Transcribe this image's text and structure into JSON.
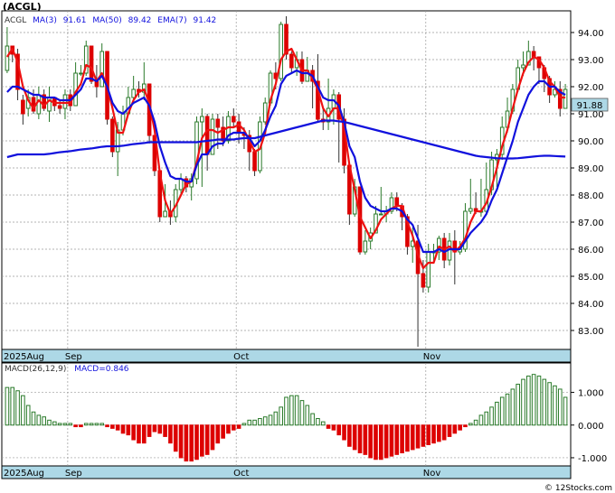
{
  "ticker": "(ACGL)",
  "watermark": "© 12Stocks.com",
  "colors": {
    "up": "#2a7a2a",
    "down": "#dd0000",
    "ma3": "#ee1111",
    "ma50": "#1111dd",
    "ema7": "#1111dd",
    "grid": "#9a9a9a",
    "axisband": "#add8e6",
    "badge": "#add8e6"
  },
  "legend": {
    "symbol": "ACGL",
    "ma3_label": "MA(3)",
    "ma3_value": "91.61",
    "ma50_label": "MA(50)",
    "ma50_value": "89.42",
    "ema7_label": "EMA(7)",
    "ema7_value": "91.42"
  },
  "last_price_badge": "91.88",
  "macd_legend": {
    "label": "MACD(26,12,9)",
    "value_label": "MACD=0.846"
  },
  "chart_data": [
    {
      "type": "candlestick",
      "title": "(ACGL)",
      "ylim": [
        82.3,
        94.8
      ],
      "yticks": [
        "83.00",
        "84.00",
        "85.00",
        "86.00",
        "87.00",
        "88.00",
        "89.00",
        "90.00",
        "91.00",
        "92.00",
        "93.00",
        "94.00"
      ],
      "x_axis_labels": [
        "2025Aug",
        "Sep",
        "Oct",
        "Nov"
      ],
      "x_axis_label_at_bar": [
        0,
        12,
        44,
        80
      ],
      "grid": true,
      "candles": [
        [
          92.6,
          93.5,
          94.2,
          92.5
        ],
        [
          93.5,
          93.2,
          93.5,
          92.9
        ],
        [
          93.2,
          91.9,
          93.4,
          91.5
        ],
        [
          91.5,
          91.0,
          91.7,
          90.6
        ],
        [
          91.2,
          91.6,
          91.9,
          90.9
        ],
        [
          91.6,
          91.1,
          91.9,
          91.0
        ],
        [
          91.0,
          91.7,
          92.0,
          90.8
        ],
        [
          91.7,
          91.2,
          91.9,
          91.1
        ],
        [
          91.1,
          91.6,
          92.0,
          90.7
        ],
        [
          91.6,
          91.3,
          91.6,
          91.1
        ],
        [
          91.3,
          91.2,
          91.5,
          91.0
        ],
        [
          91.2,
          91.7,
          91.9,
          90.8
        ],
        [
          91.7,
          91.3,
          91.9,
          91.1
        ],
        [
          91.3,
          92.5,
          92.9,
          91.3
        ],
        [
          92.5,
          92.5,
          92.8,
          92.4
        ],
        [
          92.5,
          93.5,
          93.7,
          92.4
        ],
        [
          93.5,
          92.2,
          93.5,
          92.1
        ],
        [
          92.2,
          92.0,
          92.8,
          91.6
        ],
        [
          92.0,
          93.3,
          93.6,
          92.0
        ],
        [
          93.3,
          90.8,
          93.3,
          90.6
        ],
        [
          90.8,
          89.6,
          90.9,
          89.4
        ],
        [
          89.6,
          90.4,
          90.7,
          88.7
        ],
        [
          90.4,
          91.0,
          91.3,
          90.2
        ],
        [
          91.0,
          91.6,
          92.0,
          91.0
        ],
        [
          91.6,
          91.9,
          92.4,
          91.4
        ],
        [
          91.9,
          91.8,
          92.2,
          91.6
        ],
        [
          91.8,
          92.1,
          92.9,
          91.5
        ],
        [
          92.1,
          90.2,
          92.1,
          89.9
        ],
        [
          90.2,
          88.9,
          90.2,
          88.7
        ],
        [
          88.9,
          87.2,
          88.9,
          87.0
        ],
        [
          87.2,
          87.4,
          88.4,
          87.2
        ],
        [
          87.4,
          87.2,
          87.8,
          86.9
        ],
        [
          87.2,
          88.2,
          88.4,
          87.0
        ],
        [
          88.2,
          88.6,
          88.8,
          88.0
        ],
        [
          88.6,
          88.3,
          88.7,
          88.1
        ],
        [
          88.3,
          88.6,
          88.8,
          87.8
        ],
        [
          88.6,
          90.7,
          90.9,
          88.4
        ],
        [
          90.7,
          90.9,
          91.2,
          88.3
        ],
        [
          90.9,
          89.5,
          91.0,
          88.9
        ],
        [
          89.5,
          90.8,
          91.0,
          89.5
        ],
        [
          90.8,
          90.5,
          91.0,
          89.7
        ],
        [
          90.5,
          90.0,
          90.9,
          89.8
        ],
        [
          90.0,
          90.9,
          91.1,
          89.9
        ],
        [
          90.9,
          90.7,
          91.2,
          90.5
        ],
        [
          90.7,
          90.3,
          91.0,
          89.9
        ],
        [
          90.3,
          90.2,
          90.5,
          89.7
        ],
        [
          90.2,
          89.6,
          90.4,
          88.9
        ],
        [
          89.6,
          88.9,
          89.7,
          88.7
        ],
        [
          88.9,
          90.7,
          90.9,
          88.8
        ],
        [
          90.7,
          91.4,
          91.6,
          90.6
        ],
        [
          91.4,
          92.5,
          92.6,
          91.3
        ],
        [
          92.5,
          92.3,
          92.9,
          91.9
        ],
        [
          92.3,
          94.3,
          94.4,
          92.2
        ],
        [
          94.3,
          93.2,
          94.6,
          93.0
        ],
        [
          93.2,
          92.7,
          93.3,
          92.5
        ],
        [
          92.7,
          93.0,
          93.3,
          92.4
        ],
        [
          93.0,
          92.2,
          93.3,
          92.1
        ],
        [
          92.2,
          92.6,
          93.1,
          92.2
        ],
        [
          92.6,
          92.2,
          92.8,
          91.2
        ],
        [
          92.2,
          90.8,
          93.2,
          90.7
        ],
        [
          90.8,
          90.7,
          91.2,
          90.4
        ],
        [
          90.7,
          91.2,
          92.3,
          90.4
        ],
        [
          91.2,
          91.7,
          91.9,
          90.6
        ],
        [
          91.7,
          90.8,
          91.8,
          89.2
        ],
        [
          90.8,
          89.1,
          91.2,
          88.8
        ],
        [
          89.1,
          87.3,
          89.1,
          86.9
        ],
        [
          87.3,
          88.3,
          88.6,
          87.2
        ],
        [
          88.3,
          85.9,
          88.3,
          85.8
        ],
        [
          85.9,
          86.3,
          86.7,
          85.8
        ],
        [
          86.3,
          86.6,
          86.8,
          86.0
        ],
        [
          86.6,
          87.3,
          87.6,
          86.6
        ],
        [
          87.3,
          87.3,
          88.3,
          87.3
        ],
        [
          87.3,
          87.4,
          87.6,
          87.0
        ],
        [
          87.4,
          87.9,
          88.1,
          87.3
        ],
        [
          87.9,
          87.6,
          88.1,
          87.4
        ],
        [
          87.6,
          87.2,
          87.7,
          86.7
        ],
        [
          87.2,
          86.1,
          87.3,
          85.8
        ],
        [
          86.1,
          86.3,
          86.8,
          85.5
        ],
        [
          86.3,
          85.1,
          86.9,
          82.4
        ],
        [
          85.1,
          84.6,
          85.6,
          84.4
        ],
        [
          84.6,
          85.9,
          86.2,
          84.4
        ],
        [
          85.9,
          85.9,
          86.2,
          85.5
        ],
        [
          85.9,
          86.4,
          86.5,
          85.6
        ],
        [
          86.4,
          85.6,
          86.6,
          85.3
        ],
        [
          85.6,
          86.3,
          86.6,
          85.4
        ],
        [
          86.3,
          85.9,
          86.7,
          84.7
        ],
        [
          85.9,
          86.0,
          86.3,
          85.8
        ],
        [
          86.0,
          87.4,
          87.7,
          85.9
        ],
        [
          87.4,
          87.5,
          88.6,
          87.3
        ],
        [
          87.5,
          87.4,
          88.1,
          87.3
        ],
        [
          87.4,
          87.4,
          88.6,
          87.2
        ],
        [
          87.4,
          88.2,
          89.2,
          87.3
        ],
        [
          88.2,
          89.3,
          89.6,
          88.0
        ],
        [
          89.3,
          89.5,
          89.7,
          88.3
        ],
        [
          89.5,
          90.5,
          90.9,
          89.3
        ],
        [
          90.5,
          91.1,
          91.6,
          90.3
        ],
        [
          91.1,
          91.9,
          92.1,
          91.0
        ],
        [
          91.9,
          92.7,
          93.0,
          91.8
        ],
        [
          92.7,
          92.8,
          93.3,
          92.4
        ],
        [
          92.8,
          93.3,
          93.7,
          93.1
        ],
        [
          93.3,
          93.1,
          93.5,
          92.6
        ],
        [
          93.1,
          92.7,
          93.1,
          92.1
        ],
        [
          92.7,
          92.3,
          92.8,
          91.8
        ],
        [
          92.3,
          91.7,
          92.4,
          91.4
        ],
        [
          91.7,
          91.9,
          92.2,
          91.6
        ],
        [
          91.9,
          91.2,
          92.2,
          90.9
        ],
        [
          91.2,
          91.9,
          92.1,
          91.3
        ]
      ],
      "series": [
        {
          "name": "MA(3)",
          "key": "ma3",
          "values": [
            93.1,
            93.4,
            92.9,
            92.0,
            91.5,
            91.2,
            91.5,
            91.3,
            91.5,
            91.4,
            91.4,
            91.4,
            91.4,
            91.8,
            92.1,
            92.8,
            92.7,
            92.2,
            92.5,
            92.0,
            91.2,
            90.3,
            90.3,
            91.0,
            91.5,
            91.8,
            91.9,
            91.4,
            90.4,
            88.8,
            87.8,
            87.3,
            87.6,
            88.0,
            88.4,
            88.5,
            89.2,
            90.1,
            90.4,
            90.4,
            90.3,
            90.4,
            90.5,
            90.5,
            90.6,
            90.4,
            90.0,
            89.6,
            89.7,
            90.3,
            91.5,
            92.1,
            93.0,
            93.3,
            93.4,
            93.0,
            92.6,
            92.6,
            92.3,
            91.9,
            91.2,
            90.9,
            91.2,
            91.2,
            90.5,
            89.1,
            88.2,
            87.2,
            86.8,
            86.4,
            86.7,
            87.1,
            87.3,
            87.5,
            87.6,
            87.6,
            87.0,
            86.5,
            85.8,
            85.3,
            85.5,
            85.5,
            86.1,
            86.0,
            86.1,
            85.9,
            86.1,
            86.4,
            87.0,
            87.4,
            87.4,
            87.7,
            88.3,
            89.0,
            89.8,
            90.4,
            91.2,
            91.9,
            92.5,
            92.9,
            93.1,
            93.0,
            92.7,
            92.2,
            92.0,
            91.6,
            91.6
          ]
        },
        {
          "name": "MA(50)",
          "key": "ma50",
          "values": [
            89.4,
            89.45,
            89.5,
            89.5,
            89.5,
            89.5,
            89.5,
            89.5,
            89.52,
            89.55,
            89.58,
            89.6,
            89.62,
            89.65,
            89.68,
            89.7,
            89.72,
            89.75,
            89.78,
            89.8,
            89.8,
            89.8,
            89.82,
            89.85,
            89.88,
            89.9,
            89.92,
            89.95,
            89.95,
            89.95,
            89.95,
            89.95,
            89.95,
            89.95,
            89.95,
            89.95,
            89.95,
            89.98,
            90.0,
            90.02,
            90.05,
            90.05,
            90.05,
            90.05,
            90.08,
            90.1,
            90.1,
            90.1,
            90.15,
            90.2,
            90.25,
            90.3,
            90.35,
            90.4,
            90.45,
            90.5,
            90.55,
            90.6,
            90.65,
            90.7,
            90.75,
            90.75,
            90.75,
            90.72,
            90.7,
            90.65,
            90.6,
            90.55,
            90.5,
            90.45,
            90.4,
            90.35,
            90.3,
            90.25,
            90.2,
            90.15,
            90.1,
            90.05,
            90.0,
            89.95,
            89.9,
            89.85,
            89.8,
            89.75,
            89.7,
            89.65,
            89.6,
            89.55,
            89.5,
            89.45,
            89.42,
            89.4,
            89.38,
            89.36,
            89.35,
            89.35,
            89.35,
            89.36,
            89.38,
            89.4,
            89.42,
            89.44,
            89.45,
            89.45,
            89.44,
            89.43,
            89.42
          ]
        },
        {
          "name": "EMA(7)",
          "key": "ema7",
          "values": [
            91.8,
            92.0,
            92.0,
            91.9,
            91.8,
            91.7,
            91.7,
            91.6,
            91.6,
            91.6,
            91.5,
            91.5,
            91.5,
            91.7,
            91.9,
            92.3,
            92.3,
            92.2,
            92.4,
            92.0,
            91.4,
            91.1,
            91.0,
            91.2,
            91.4,
            91.5,
            91.6,
            91.3,
            90.7,
            89.8,
            89.2,
            88.7,
            88.6,
            88.6,
            88.5,
            88.5,
            89.1,
            89.5,
            89.5,
            89.8,
            89.9,
            89.9,
            90.2,
            90.3,
            90.3,
            90.3,
            90.1,
            89.8,
            90.0,
            90.4,
            90.9,
            91.3,
            92.1,
            92.4,
            92.5,
            92.6,
            92.5,
            92.5,
            92.4,
            92.0,
            91.6,
            91.5,
            91.5,
            91.3,
            90.7,
            89.8,
            89.4,
            88.5,
            87.9,
            87.6,
            87.5,
            87.4,
            87.4,
            87.5,
            87.5,
            87.4,
            87.1,
            86.9,
            86.4,
            85.9,
            85.9,
            85.9,
            86.0,
            85.9,
            86.0,
            86.0,
            86.0,
            86.3,
            86.6,
            86.8,
            87.0,
            87.3,
            87.8,
            88.2,
            88.8,
            89.4,
            90.0,
            90.7,
            91.2,
            91.7,
            92.0,
            92.2,
            92.2,
            92.0,
            92.0,
            91.8,
            91.7
          ]
        }
      ]
    },
    {
      "type": "bar",
      "title": "MACD(26,12,9)",
      "ylim": [
        -1.25,
        1.9
      ],
      "yticks": [
        "-1.000",
        "0.000",
        "1.000"
      ],
      "x_axis_labels": [
        "2025Aug",
        "Sep",
        "Oct",
        "Nov"
      ],
      "values": [
        1.15,
        1.15,
        1.05,
        0.9,
        0.6,
        0.4,
        0.3,
        0.25,
        0.15,
        0.1,
        0.05,
        0.05,
        0.05,
        -0.05,
        -0.05,
        0.05,
        0.05,
        0.05,
        0.05,
        -0.05,
        -0.1,
        -0.15,
        -0.25,
        -0.3,
        -0.45,
        -0.55,
        -0.55,
        -0.35,
        -0.2,
        -0.25,
        -0.35,
        -0.55,
        -0.8,
        -1.0,
        -1.1,
        -1.1,
        -1.05,
        -0.95,
        -0.9,
        -0.75,
        -0.55,
        -0.4,
        -0.25,
        -0.15,
        -0.1,
        0.05,
        0.15,
        0.15,
        0.2,
        0.25,
        0.3,
        0.4,
        0.55,
        0.85,
        0.9,
        0.9,
        0.75,
        0.6,
        0.35,
        0.2,
        0.1,
        -0.1,
        -0.15,
        -0.3,
        -0.45,
        -0.65,
        -0.75,
        -0.85,
        -0.9,
        -1.0,
        -1.05,
        -1.05,
        -1.0,
        -0.95,
        -0.9,
        -0.85,
        -0.8,
        -0.75,
        -0.7,
        -0.65,
        -0.6,
        -0.55,
        -0.5,
        -0.45,
        -0.35,
        -0.25,
        -0.15,
        -0.05,
        0.05,
        0.15,
        0.3,
        0.4,
        0.55,
        0.7,
        0.85,
        0.95,
        1.1,
        1.25,
        1.4,
        1.5,
        1.55,
        1.5,
        1.4,
        1.3,
        1.2,
        1.1,
        0.85
      ]
    }
  ]
}
